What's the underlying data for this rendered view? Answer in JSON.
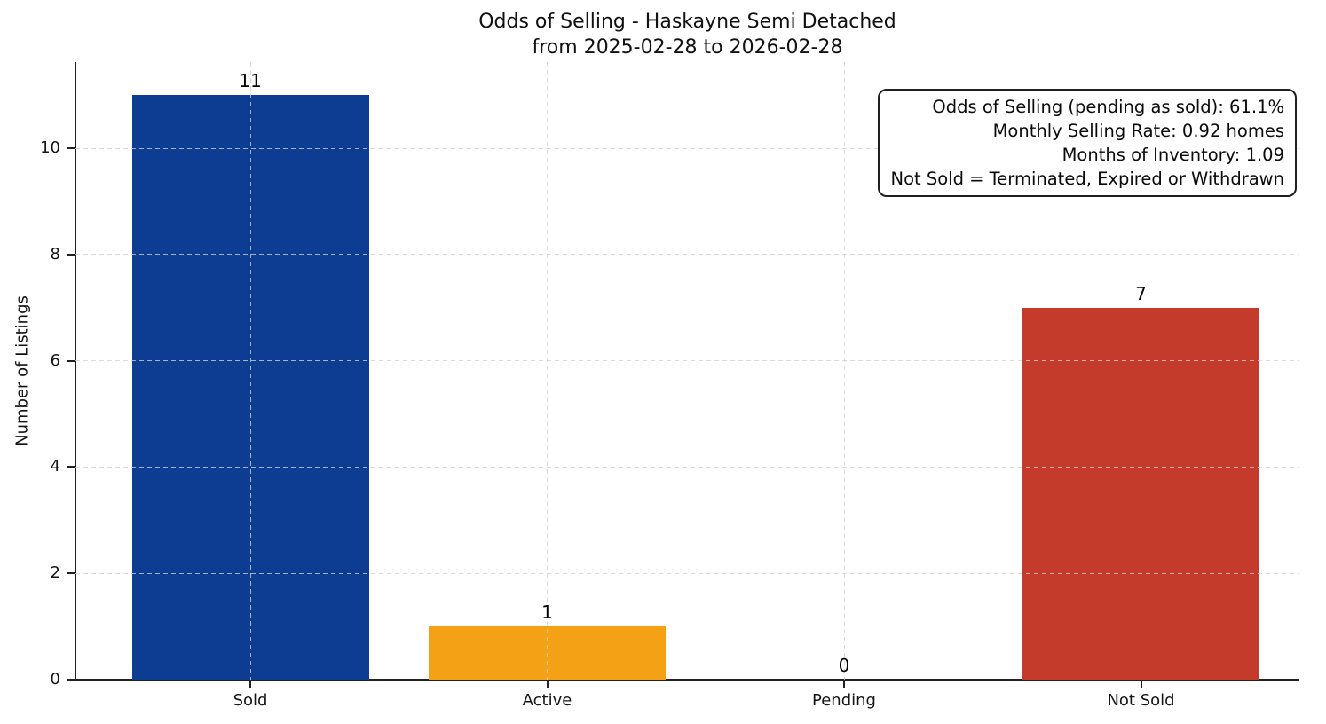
{
  "chart_data": {
    "type": "bar",
    "title": "Odds of Selling - Haskayne Semi Detached",
    "subtitle": "from 2025-02-28 to 2026-02-28",
    "categories": [
      "Sold",
      "Active",
      "Pending",
      "Not Sold"
    ],
    "values": [
      11,
      1,
      0,
      7
    ],
    "value_labels": [
      "11",
      "1",
      "0",
      "7"
    ],
    "bar_colors": [
      "#0d3d92",
      "#f5a115",
      "#8a8a8a",
      "#c43a2b"
    ],
    "xlabel": "",
    "ylabel": "Number of Listings",
    "yticks": [
      0,
      2,
      4,
      6,
      8,
      10
    ],
    "ylim": [
      0,
      11.6
    ],
    "grid": {
      "visible": true,
      "style": "dashed",
      "axes": "both"
    },
    "legend": "none",
    "annotation": [
      "Odds of Selling (pending as sold): 61.1%",
      "Monthly Selling Rate: 0.92 homes",
      "Months of Inventory: 1.09",
      "Not Sold = Terminated, Expired or Withdrawn"
    ]
  },
  "colors": {
    "sold_bar": "#0d3d92",
    "active_bar": "#f5a115",
    "not_sold_bar": "#c43a2b",
    "axis": "#222222",
    "grid": "#d0d0d0",
    "text": "#111111",
    "background": "#ffffff"
  }
}
